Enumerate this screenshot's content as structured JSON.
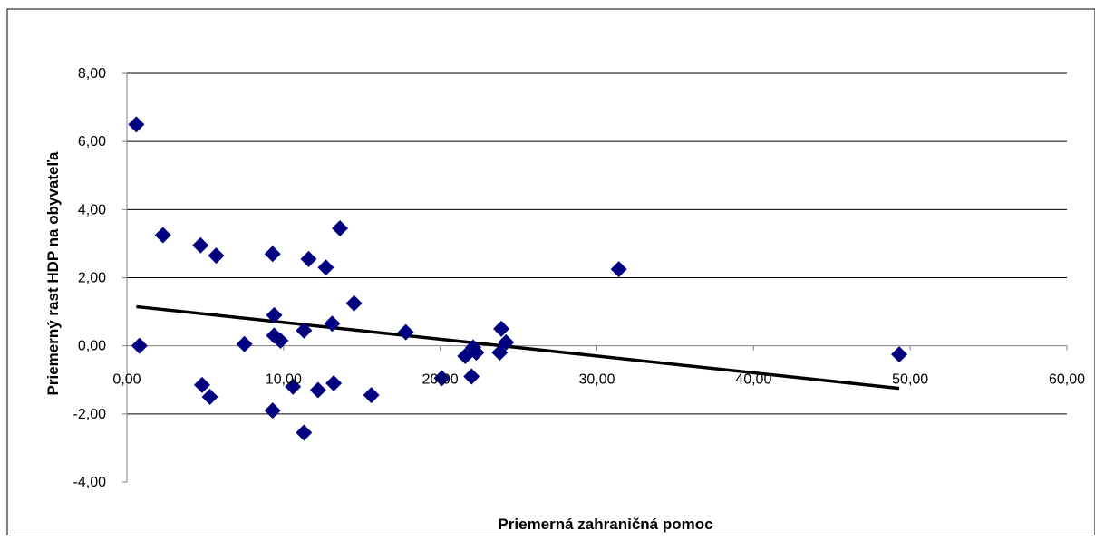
{
  "chart_data": {
    "type": "scatter",
    "title": "",
    "xlabel": "Priemerná zahraničná pomoc",
    "ylabel": "Priemerný rast HDP na obyvateľa",
    "xlim": [
      0,
      60
    ],
    "ylim": [
      -4,
      8
    ],
    "x_ticks": [
      0,
      10,
      20,
      30,
      40,
      50,
      60
    ],
    "y_ticks": [
      -4,
      -2,
      0,
      2,
      4,
      6,
      8
    ],
    "x_tick_labels": [
      "0,00",
      "10,00",
      "20,00",
      "30,00",
      "40,00",
      "50,00",
      "60,00"
    ],
    "y_tick_labels": [
      "-4,00",
      "-2,00",
      "0,00",
      "2,00",
      "4,00",
      "6,00",
      "8,00"
    ],
    "grid": "horizontal",
    "legend": "none",
    "marker": "diamond",
    "marker_color": "#000080",
    "trendline_color": "#000000",
    "points": [
      {
        "x": 0.6,
        "y": 6.5
      },
      {
        "x": 0.8,
        "y": 0.0
      },
      {
        "x": 2.3,
        "y": 3.25
      },
      {
        "x": 4.7,
        "y": 2.95
      },
      {
        "x": 5.7,
        "y": 2.65
      },
      {
        "x": 4.8,
        "y": -1.15
      },
      {
        "x": 5.3,
        "y": -1.5
      },
      {
        "x": 7.5,
        "y": 0.05
      },
      {
        "x": 9.3,
        "y": 2.7
      },
      {
        "x": 9.4,
        "y": 0.9
      },
      {
        "x": 9.4,
        "y": 0.3
      },
      {
        "x": 9.8,
        "y": 0.15
      },
      {
        "x": 9.3,
        "y": -1.9
      },
      {
        "x": 10.6,
        "y": -1.2
      },
      {
        "x": 11.3,
        "y": 0.45
      },
      {
        "x": 11.6,
        "y": 2.55
      },
      {
        "x": 12.7,
        "y": 2.3
      },
      {
        "x": 13.1,
        "y": 0.65
      },
      {
        "x": 13.6,
        "y": 3.45
      },
      {
        "x": 12.2,
        "y": -1.3
      },
      {
        "x": 13.2,
        "y": -1.1
      },
      {
        "x": 11.3,
        "y": -2.55
      },
      {
        "x": 14.5,
        "y": 1.25
      },
      {
        "x": 15.6,
        "y": -1.45
      },
      {
        "x": 17.8,
        "y": 0.4
      },
      {
        "x": 20.1,
        "y": -0.95
      },
      {
        "x": 21.6,
        "y": -0.3
      },
      {
        "x": 22.1,
        "y": -0.05
      },
      {
        "x": 22.3,
        "y": -0.2
      },
      {
        "x": 22.0,
        "y": -0.9
      },
      {
        "x": 23.9,
        "y": 0.5
      },
      {
        "x": 24.2,
        "y": 0.1
      },
      {
        "x": 23.8,
        "y": -0.2
      },
      {
        "x": 31.4,
        "y": 2.25
      },
      {
        "x": 49.3,
        "y": -0.25
      }
    ],
    "trendline": {
      "x": [
        0.6,
        49.3
      ],
      "y": [
        1.15,
        -1.25
      ]
    }
  }
}
